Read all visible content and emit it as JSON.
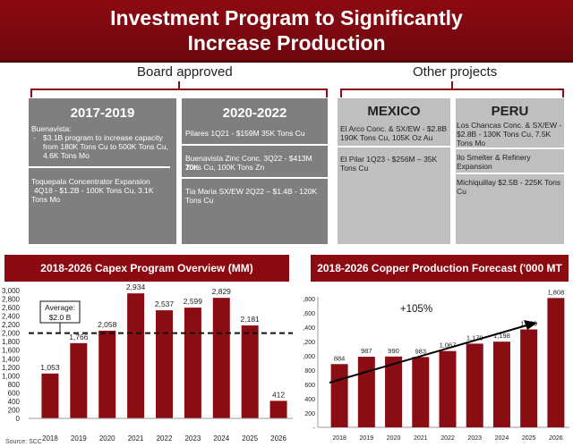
{
  "title": {
    "line1": "Investment Program to Significantly",
    "line2": "Increase Production"
  },
  "sections": {
    "board": "Board approved",
    "other": "Other projects"
  },
  "boxes": {
    "b1": {
      "head": "2017-2019",
      "item1_title": "Buenavista:",
      "item1_dash": "-",
      "item1_l1": "$3.1B program to increase capacity",
      "item1_l2": "from 180K Tons Cu to 500K Tons Cu,",
      "item1_l3": "4.6K Tons Mo",
      "item2_l1": "Toquepala Concentrator  Expansion",
      "item2_l2": "4Q18 - $1.2B - 100K Tons Cu, 3.1K",
      "item2_l3": "Tons Mo"
    },
    "b2": {
      "head": "2020-2022",
      "item1": "Pilares 1Q21 - $159M 35K Tons Cu",
      "item2_l1": "Buenavista Zinc Conc. 3Q22 - $413M 20K",
      "item2_l2": "Tons Cu, 100K Tons Zn",
      "item3_l1": "Tia Maria SX/EW 2Q22 – $1.4B - 120K",
      "item3_l2": "Tons Cu"
    },
    "mexico": {
      "head": "MEXICO",
      "item1_l1": "El Arco Conc. & SX/EW - $2.8B",
      "item1_l2": "190K Tons Cu, 105K Oz Au",
      "item2_l1": "El Pilar  1Q23 - $256M – 35K",
      "item2_l2": "Tons Cu"
    },
    "peru": {
      "head": "PERU",
      "item1_l1": "Los Chancas Conc. & SX/EW -",
      "item1_l2": "$2.8B - 130K Tons Cu, 7.5K",
      "item1_l3": "Tons Mo",
      "item2_l1": "Ilo Smelter & Refinery",
      "item2_l2": "Expansion",
      "item3": "Michiquillay $2.5B - 225K Tons Cu"
    }
  },
  "source": "Source: SCC",
  "colors": {
    "bar": "#8b0d14",
    "header": "#8c0a12",
    "box_dark": "#7f7f7f",
    "box_light": "#bfbfbf"
  },
  "chart_data": [
    {
      "type": "bar",
      "title": "2018-2026 Capex Program Overview (MM)",
      "categories": [
        "2018",
        "2019",
        "2020",
        "2021",
        "2022",
        "2023",
        "2024",
        "2025",
        "2026"
      ],
      "values": [
        1053,
        1766,
        2058,
        2934,
        2537,
        2599,
        2829,
        2181,
        412
      ],
      "value_labels": [
        "1,053",
        "1,766",
        "2,058",
        "2,934",
        "2,537",
        "2,599",
        "2,829",
        "2,181",
        "412"
      ],
      "ylim": [
        0,
        3000
      ],
      "yticks": [
        0,
        200,
        400,
        600,
        800,
        1000,
        1200,
        1400,
        1600,
        1800,
        2000,
        2200,
        2400,
        2600,
        2800,
        3000
      ],
      "ytick_labels": [
        "0",
        "200",
        "400",
        "600",
        "800",
        "1,000",
        "1,200",
        "1,400",
        "1,600",
        "1,800",
        "2,000",
        "2,200",
        "2,400",
        "2,600",
        "2,800",
        "3,000"
      ],
      "average": 2000,
      "average_label_1": "Average:",
      "average_label_2": "$2.0 B"
    },
    {
      "type": "bar",
      "title": "2018-2026 Copper Production Forecast ('000 MT Cu)",
      "categories": [
        "2018",
        "2019",
        "2020",
        "2021",
        "2022",
        "2023",
        "2024",
        "2025",
        "2026"
      ],
      "values": [
        884,
        987,
        990,
        983,
        1067,
        1170,
        1198,
        1369,
        1808
      ],
      "value_labels": [
        "884",
        "987",
        "990",
        "983",
        "1,067",
        "1,170",
        "1,198",
        "1,369",
        "1,808"
      ],
      "ylim": [
        0,
        1800
      ],
      "yticks": [
        0,
        200,
        400,
        600,
        800,
        1000,
        1200,
        1400,
        1600,
        1800
      ],
      "ytick_labels": [
        "-",
        "200",
        "400",
        "600",
        "800",
        "1,000",
        "1,200",
        "1,400",
        "1,600",
        "1,800"
      ],
      "annotation": "+105%"
    }
  ]
}
